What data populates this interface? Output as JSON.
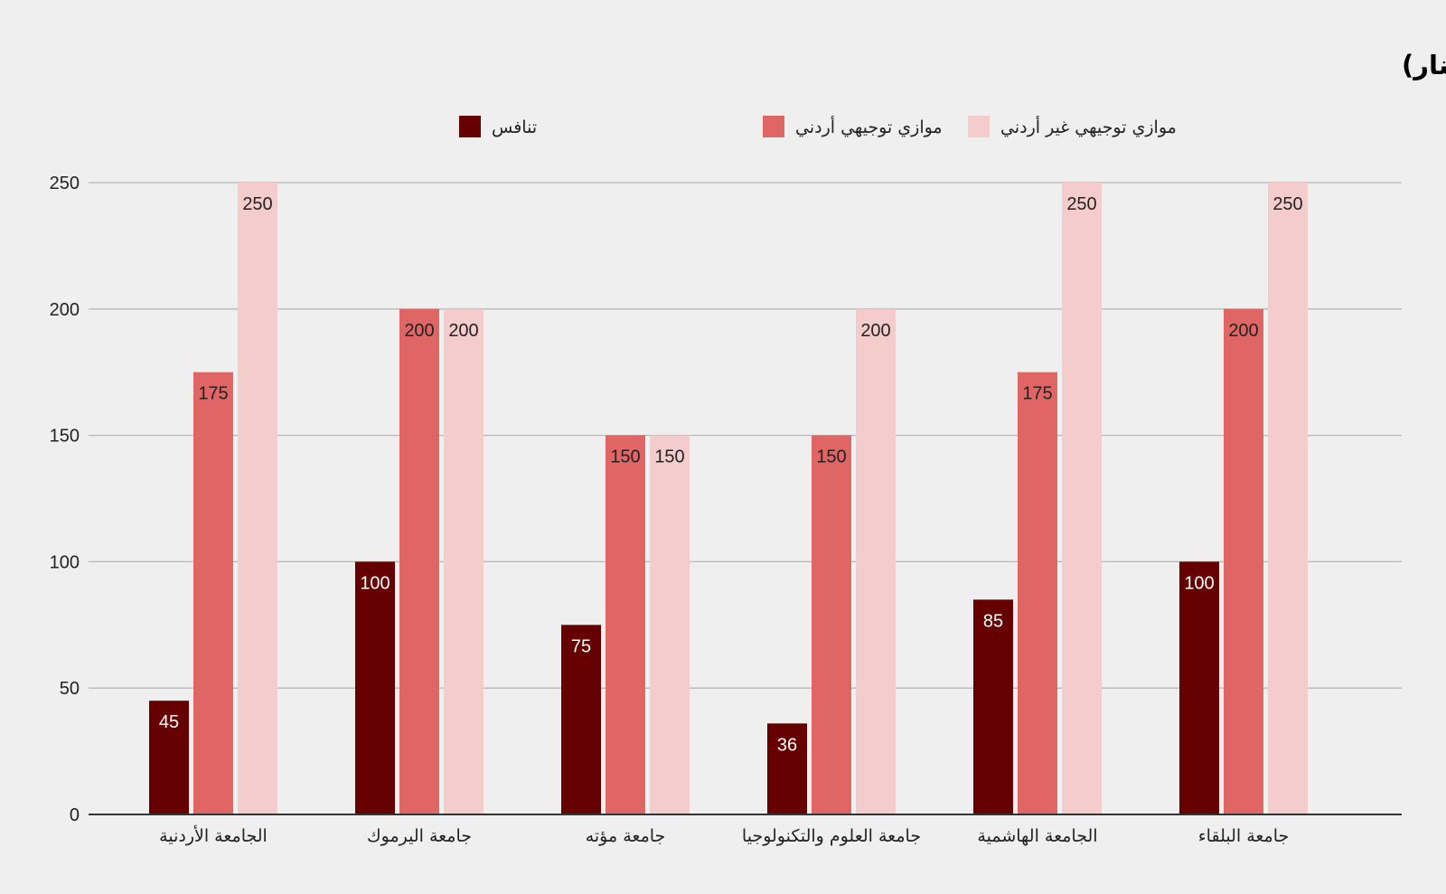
{
  "chart_data": {
    "type": "bar",
    "title": "رسوم تخصص الطب في الجامعات الحكومية (بالدينار)",
    "categories": [
      "الجامعة الأردنية",
      "جامعة اليرموك",
      "جامعة مؤته",
      "جامعة العلوم والتكنولوجيا",
      "الجامعة الهاشمية",
      "جامعة البلقاء"
    ],
    "series": [
      {
        "name": "تنافس",
        "color": "#660000",
        "label_color": "#ffffff",
        "values": [
          45,
          100,
          75,
          36,
          85,
          100
        ]
      },
      {
        "name": "موازي توجيهي أردني",
        "color": "#e06666",
        "label_color": "#222222",
        "values": [
          175,
          200,
          150,
          150,
          175,
          200
        ]
      },
      {
        "name": "موازي توجيهي  غير أردني",
        "color": "#f4cccc",
        "label_color": "#222222",
        "values": [
          250,
          200,
          150,
          200,
          250,
          250
        ]
      }
    ],
    "xlabel": "",
    "ylabel": "",
    "ylim": [
      0,
      250
    ],
    "yticks": [
      0,
      50,
      100,
      150,
      200,
      250
    ],
    "grid": true,
    "legend_position": "top",
    "data_labels": true
  }
}
